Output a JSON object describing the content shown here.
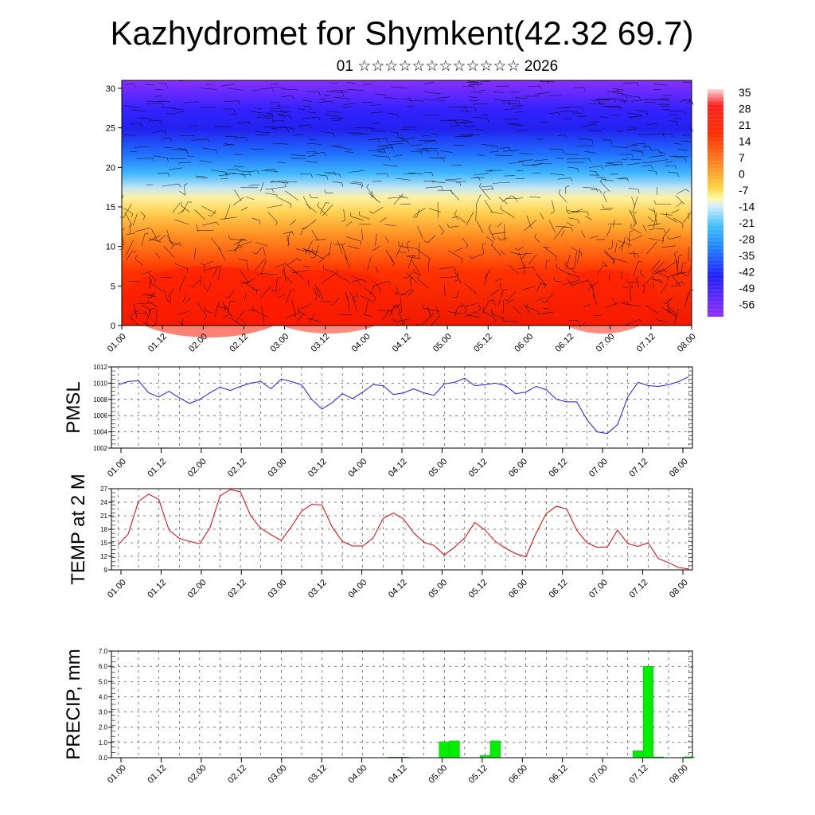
{
  "title": "Kazhydromet for Shymkent(42.32 69.7)",
  "subtitle_day": "01",
  "subtitle_month": "☆☆☆☆☆☆☆☆☆☆☆☆",
  "subtitle_year": "2026",
  "colors": {
    "pmsl_line": "#1a1aff",
    "temp_line": "#e00000",
    "precip_bar": "#00ee00",
    "grid": "#000000"
  },
  "chart_data": [
    {
      "type": "heatmap",
      "name": "temperature-cross-section",
      "title": "",
      "ylim": [
        0,
        31
      ],
      "y_ticks": [
        "0",
        "5",
        "10",
        "15",
        "20",
        "25",
        "30"
      ],
      "x_ticks": [
        "01.00",
        "01.12",
        "02.00",
        "02.12",
        "03.00",
        "03.12",
        "04.00",
        "04.12",
        "05.00",
        "05.12",
        "06.00",
        "06.12",
        "07.00",
        "07.12",
        "08.00"
      ],
      "colorbar_labels": [
        "35",
        "28",
        "21",
        "14",
        "7",
        "0",
        "-7",
        "-14",
        "-21",
        "-28",
        "-35",
        "-42",
        "-49",
        "-56"
      ],
      "color_stops": [
        "#c8c8ff",
        "#ff0000",
        "#ff5000",
        "#ffa040",
        "#ffe066",
        "#cfe8f0",
        "#40c0ff",
        "#2080ff",
        "#2020ff",
        "#8020ff"
      ],
      "overlay": "wind barbs"
    },
    {
      "type": "line",
      "name": "pmsl",
      "ylabel": "PMSL",
      "ylim": [
        1002,
        1012
      ],
      "y_ticks": [
        "1002",
        "1004",
        "1006",
        "1008",
        "1010",
        "1012"
      ],
      "x_ticks": [
        "01.00",
        "01.12",
        "02.00",
        "02.12",
        "03.00",
        "03.12",
        "04.00",
        "04.12",
        "05.00",
        "05.12",
        "06.00",
        "06.12",
        "07.00",
        "07.12",
        "08.00"
      ],
      "values": [
        1009.8,
        1010.2,
        1010.3,
        1008.8,
        1008.3,
        1009.0,
        1008.2,
        1007.5,
        1008.0,
        1008.8,
        1009.5,
        1009.1,
        1009.6,
        1010.0,
        1010.2,
        1009.3,
        1010.5,
        1010.2,
        1009.8,
        1008.0,
        1006.8,
        1007.6,
        1008.7,
        1008.1,
        1008.9,
        1009.8,
        1009.7,
        1008.6,
        1008.8,
        1009.3,
        1008.8,
        1008.5,
        1009.9,
        1010.1,
        1010.6,
        1009.7,
        1009.8,
        1010.0,
        1009.7,
        1008.7,
        1008.9,
        1009.6,
        1009.2,
        1008.0,
        1007.7,
        1007.7,
        1005.5,
        1004.0,
        1003.8,
        1004.9,
        1008.3,
        1010.1,
        1009.7,
        1009.6,
        1009.8,
        1010.2,
        1010.8
      ]
    },
    {
      "type": "line",
      "name": "temp-2m",
      "ylabel": "TEMP at 2 M",
      "ylim": [
        9,
        27
      ],
      "y_ticks": [
        "9",
        "12",
        "15",
        "18",
        "21",
        "24",
        "27"
      ],
      "x_ticks": [
        "01.00",
        "01.12",
        "02.00",
        "02.12",
        "03.00",
        "03.12",
        "04.00",
        "04.12",
        "05.00",
        "05.12",
        "06.00",
        "06.12",
        "07.00",
        "07.12",
        "08.00"
      ],
      "values": [
        14.5,
        17.0,
        24.2,
        25.8,
        24.6,
        17.8,
        16.0,
        15.3,
        14.8,
        18.3,
        25.4,
        26.8,
        26.3,
        21.0,
        18.2,
        16.8,
        15.5,
        18.6,
        22.0,
        23.5,
        23.4,
        18.5,
        15.3,
        14.3,
        14.3,
        16.0,
        20.4,
        21.6,
        20.3,
        17.2,
        15.1,
        14.4,
        12.3,
        14.0,
        16.1,
        19.5,
        17.8,
        15.3,
        13.8,
        12.6,
        11.9,
        17.1,
        21.5,
        23.1,
        22.5,
        17.8,
        15.0,
        14.0,
        14.1,
        17.8,
        14.8,
        14.2,
        15.0,
        11.5,
        10.6,
        9.5,
        9.2
      ]
    },
    {
      "type": "bar",
      "name": "precip",
      "ylabel": "PRECIP, mm",
      "ylim": [
        0,
        7
      ],
      "y_ticks": [
        "0.0",
        "1.0",
        "2.0",
        "3.0",
        "4.0",
        "5.0",
        "6.0",
        "7.0"
      ],
      "x_ticks": [
        "01.00",
        "01.12",
        "02.00",
        "02.12",
        "03.00",
        "03.12",
        "04.00",
        "04.12",
        "05.00",
        "05.12",
        "06.00",
        "06.12",
        "07.00",
        "07.12",
        "08.00"
      ],
      "values": [
        0,
        0,
        0,
        0,
        0,
        0,
        0,
        0,
        0,
        0,
        0,
        0,
        0,
        0,
        0,
        0,
        0,
        0,
        0,
        0,
        0,
        0,
        0,
        0,
        0,
        0,
        0,
        0.04,
        0.04,
        0,
        0,
        0,
        1.05,
        1.1,
        0,
        0,
        0.15,
        1.1,
        0,
        0,
        0,
        0,
        0,
        0,
        0,
        0,
        0,
        0,
        0,
        0,
        0,
        0.45,
        6.0,
        0.05,
        0,
        0,
        0.06
      ]
    }
  ]
}
